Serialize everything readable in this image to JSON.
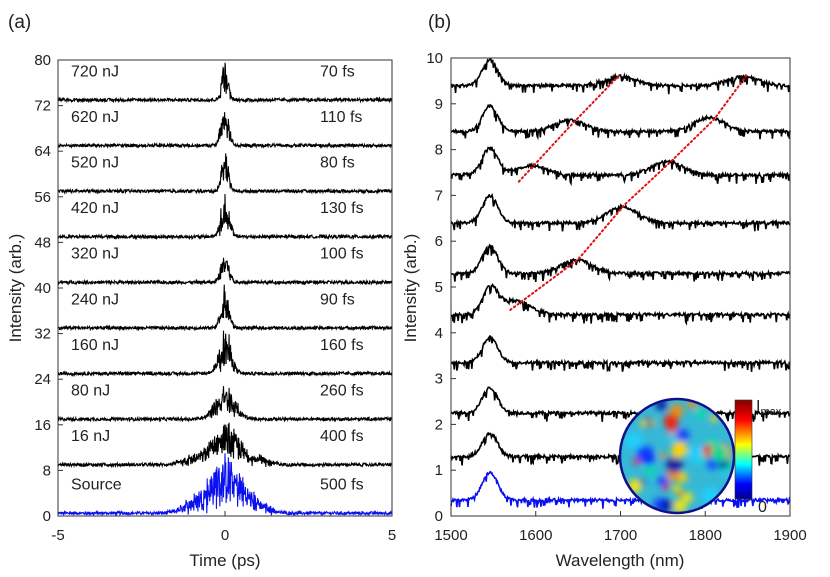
{
  "chart_data": [
    {
      "type": "line",
      "panel_label": "(a)",
      "xlabel": "Time (ps)",
      "ylabel": "Intensity (arb.)",
      "xlim": [
        -5,
        5
      ],
      "ylim": [
        0,
        80
      ],
      "xticks": [
        -5,
        0,
        5
      ],
      "yticks": [
        0,
        8,
        16,
        24,
        32,
        40,
        48,
        56,
        64,
        72,
        80
      ],
      "traces": [
        {
          "energy": "Source",
          "duration": "500 fs",
          "baseline": 0.5,
          "peak": 6.8,
          "width": 0.55,
          "color": "#0a10ee"
        },
        {
          "energy": "16 nJ",
          "duration": "400 fs",
          "baseline": 9.0,
          "peak": 5.0,
          "width": 0.45,
          "color": "#000000"
        },
        {
          "energy": "80 nJ",
          "duration": "260 fs",
          "baseline": 17.0,
          "peak": 4.0,
          "width": 0.3,
          "color": "#000000"
        },
        {
          "energy": "160 nJ",
          "duration": "160 fs",
          "baseline": 25.0,
          "peak": 5.5,
          "width": 0.18,
          "color": "#000000"
        },
        {
          "energy": "240 nJ",
          "duration": "90 fs",
          "baseline": 33.0,
          "peak": 5.0,
          "width": 0.12,
          "color": "#000000"
        },
        {
          "energy": "320 nJ",
          "duration": "100 fs",
          "baseline": 41.0,
          "peak": 4.0,
          "width": 0.12,
          "color": "#000000"
        },
        {
          "energy": "420 nJ",
          "duration": "130 fs",
          "baseline": 49.0,
          "peak": 5.0,
          "width": 0.13,
          "color": "#000000"
        },
        {
          "energy": "520 nJ",
          "duration": "80 fs",
          "baseline": 57.0,
          "peak": 5.0,
          "width": 0.1,
          "color": "#000000"
        },
        {
          "energy": "620 nJ",
          "duration": "110 fs",
          "baseline": 65.0,
          "peak": 5.0,
          "width": 0.12,
          "color": "#000000"
        },
        {
          "energy": "720 nJ",
          "duration": "70 fs",
          "baseline": 73.0,
          "peak": 6.0,
          "width": 0.09,
          "color": "#000000"
        }
      ]
    },
    {
      "type": "line",
      "panel_label": "(b)",
      "xlabel": "Wavelength (nm)",
      "ylabel": "Intensity (arb.)",
      "xlim": [
        1500,
        1900
      ],
      "ylim": [
        0,
        10
      ],
      "xticks": [
        1500,
        1600,
        1700,
        1800,
        1900
      ],
      "yticks": [
        0,
        1,
        2,
        3,
        4,
        5,
        6,
        7,
        8,
        9,
        10
      ],
      "spectra": [
        {
          "baseline": 0.35,
          "peak": 0.6,
          "sidebands": [],
          "color": "#0a10ee"
        },
        {
          "baseline": 1.3,
          "peak": 0.5,
          "sidebands": [],
          "color": "#000000"
        },
        {
          "baseline": 2.25,
          "peak": 0.55,
          "sidebands": [],
          "color": "#000000"
        },
        {
          "baseline": 3.35,
          "peak": 0.55,
          "sidebands": [],
          "color": "#000000"
        },
        {
          "baseline": 4.4,
          "peak": 0.55,
          "sidebands": [
            {
              "center": 1575,
              "amp": 0.3
            }
          ],
          "color": "#000000"
        },
        {
          "baseline": 5.3,
          "peak": 0.6,
          "sidebands": [
            {
              "center": 1648,
              "amp": 0.3
            }
          ],
          "color": "#000000"
        },
        {
          "baseline": 6.4,
          "peak": 0.6,
          "sidebands": [
            {
              "center": 1702,
              "amp": 0.35
            }
          ],
          "color": "#000000"
        },
        {
          "baseline": 7.45,
          "peak": 0.6,
          "sidebands": [
            {
              "center": 1595,
              "amp": 0.2
            },
            {
              "center": 1755,
              "amp": 0.3
            }
          ],
          "color": "#000000"
        },
        {
          "baseline": 8.4,
          "peak": 0.55,
          "sidebands": [
            {
              "center": 1640,
              "amp": 0.25
            },
            {
              "center": 1805,
              "amp": 0.3
            }
          ],
          "color": "#000000"
        },
        {
          "baseline": 9.4,
          "peak": 0.55,
          "sidebands": [
            {
              "center": 1700,
              "amp": 0.2
            },
            {
              "center": 1845,
              "amp": 0.2
            }
          ],
          "color": "#000000"
        }
      ],
      "guide_lines": [
        {
          "points": [
            [
              1580,
              7.3
            ],
            [
              1640,
              8.5
            ],
            [
              1700,
              9.65
            ]
          ],
          "color": "#e01010",
          "style": "dotted"
        },
        {
          "points": [
            [
              1570,
              4.5
            ],
            [
              1650,
              5.6
            ],
            [
              1705,
              6.8
            ],
            [
              1760,
              7.75
            ],
            [
              1810,
              8.65
            ],
            [
              1850,
              9.65
            ]
          ],
          "color": "#e01010",
          "style": "dotted"
        }
      ],
      "inset": {
        "type": "heatmap",
        "colorbar_max_label": "I",
        "colorbar_max_subscript": "max",
        "colorbar_min_label": "0"
      }
    }
  ]
}
